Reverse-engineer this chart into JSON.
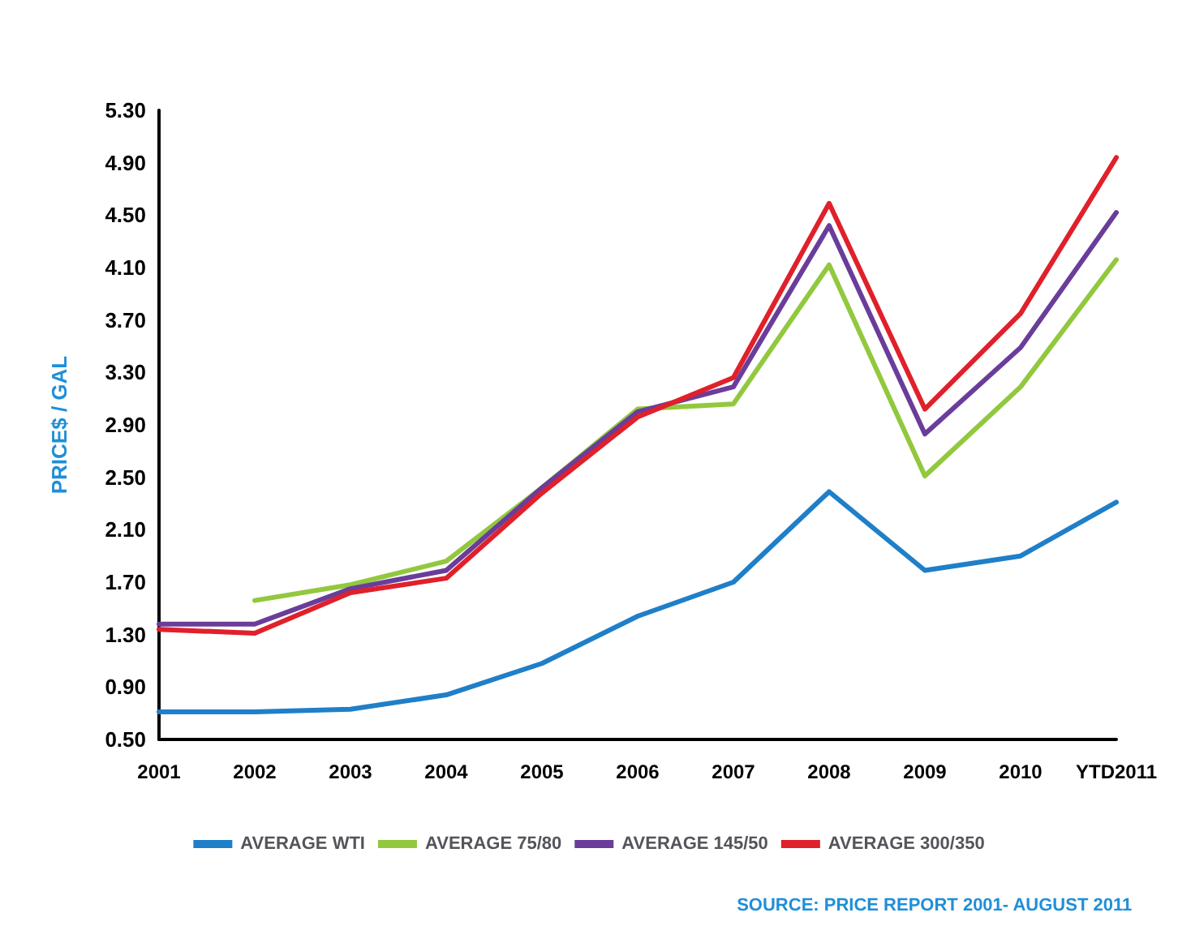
{
  "chart_data": {
    "type": "line",
    "ylabel": "PRICE$ / GAL",
    "categories": [
      "2001",
      "2002",
      "2003",
      "2004",
      "2005",
      "2006",
      "2007",
      "2008",
      "2009",
      "2010",
      "YTD2011"
    ],
    "series": [
      {
        "name": "AVERAGE WTI",
        "color": "#1f7fc8",
        "values": [
          0.71,
          0.71,
          0.73,
          0.84,
          1.08,
          1.44,
          1.7,
          2.39,
          1.79,
          1.9,
          2.31
        ]
      },
      {
        "name": "AVERAGE 75/80",
        "color": "#92c83e",
        "values": [
          null,
          1.56,
          1.68,
          1.86,
          2.42,
          3.02,
          3.06,
          4.12,
          2.51,
          3.19,
          4.16
        ]
      },
      {
        "name": "AVERAGE 145/50",
        "color": "#6a3d9a",
        "values": [
          1.38,
          1.38,
          1.65,
          1.79,
          2.42,
          3.0,
          3.19,
          4.42,
          2.83,
          3.49,
          4.52
        ]
      },
      {
        "name": "AVERAGE 300/350",
        "color": "#e0202a",
        "values": [
          1.34,
          1.31,
          1.62,
          1.73,
          2.38,
          2.96,
          3.26,
          4.59,
          3.02,
          3.75,
          4.94
        ]
      }
    ],
    "ylim": [
      0.5,
      5.3
    ],
    "yticks": [
      {
        "value": 0.5,
        "label": "0.50"
      },
      {
        "value": 0.9,
        "label": "0.90"
      },
      {
        "value": 1.3,
        "label": "1.30"
      },
      {
        "value": 1.7,
        "label": "1.70"
      },
      {
        "value": 2.1,
        "label": "2.10"
      },
      {
        "value": 2.5,
        "label": "2.50"
      },
      {
        "value": 2.9,
        "label": "2.90"
      },
      {
        "value": 3.3,
        "label": "3.30"
      },
      {
        "value": 3.7,
        "label": "3.70"
      },
      {
        "value": 4.1,
        "label": "4.10"
      },
      {
        "value": 4.5,
        "label": "4.50"
      },
      {
        "value": 4.9,
        "label": "4.90"
      },
      {
        "value": 5.3,
        "label": "5.30"
      }
    ],
    "grid": false,
    "legend": "bottom",
    "marker": "none",
    "line_style": "solid",
    "annotations": [
      "SOURCE: PRICE REPORT 2001- AUGUST 2011"
    ]
  }
}
